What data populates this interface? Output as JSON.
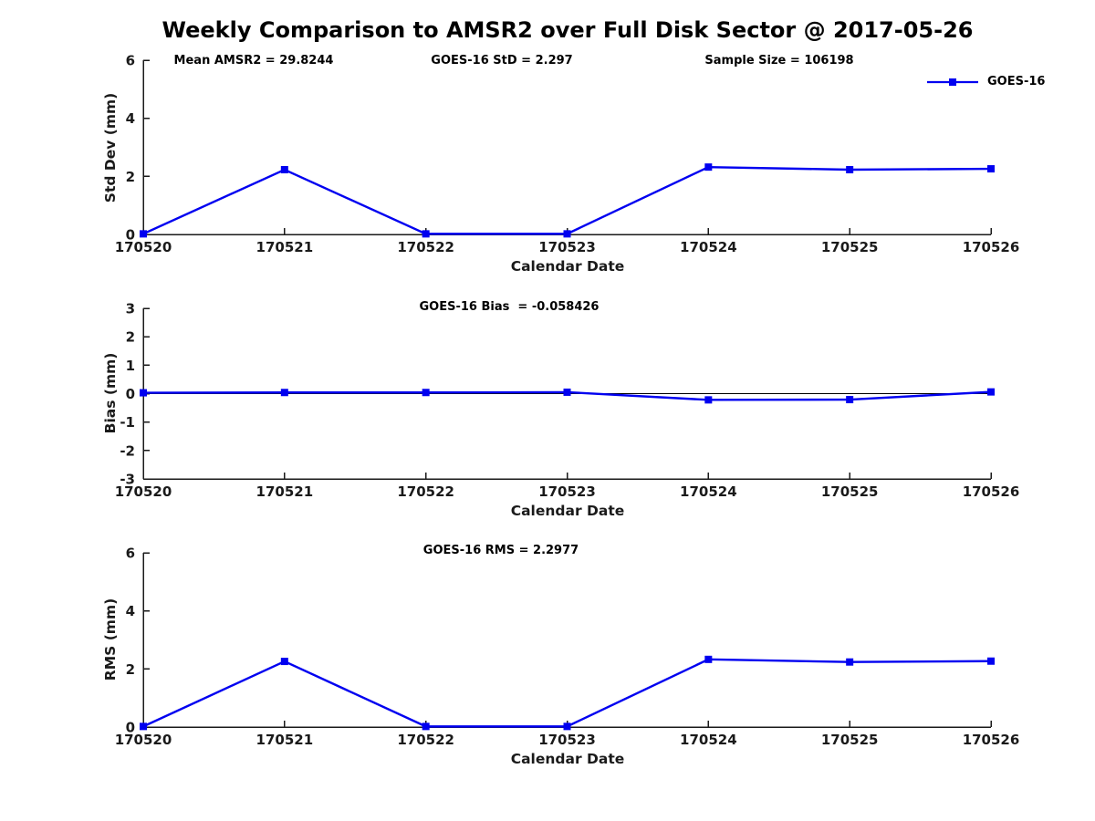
{
  "page": {
    "title": "Weekly Comparison to AMSR2 over Full Disk Sector @ 2017-05-26"
  },
  "annotations": {
    "mean_amsr2": "Mean AMSR2 = 29.8244",
    "goes16_std": "GOES-16 StD = 2.297",
    "sample_size": "Sample Size = 106198"
  },
  "legend": {
    "label": "GOES-16",
    "color": "#0000f0",
    "position": "top-right",
    "marker": "square"
  },
  "colors": {
    "line": "#0000f0",
    "axis": "#1a1a1a",
    "tick_text": "#1a1a1a",
    "zero_line": "#000000",
    "background": "#ffffff"
  },
  "chart_data": [
    {
      "type": "line",
      "title": "",
      "xlabel": "Calendar Date",
      "ylabel": "Std Dev (mm)",
      "categories": [
        "170520",
        "170521",
        "170522",
        "170523",
        "170524",
        "170525",
        "170526"
      ],
      "series": [
        {
          "name": "GOES-16",
          "values": [
            0.02,
            2.23,
            0.02,
            0.02,
            2.32,
            2.23,
            2.26
          ]
        }
      ],
      "ylim": [
        0,
        6
      ],
      "yticks": [
        0,
        2,
        4,
        6
      ],
      "grid": false,
      "zero_line": false,
      "marker": "square"
    },
    {
      "type": "line",
      "title": "GOES-16 Bias  = -0.058426",
      "xlabel": "Calendar Date",
      "ylabel": "Bias (mm)",
      "categories": [
        "170520",
        "170521",
        "170522",
        "170523",
        "170524",
        "170525",
        "170526"
      ],
      "series": [
        {
          "name": "GOES-16",
          "values": [
            0.03,
            0.04,
            0.04,
            0.05,
            -0.22,
            -0.21,
            0.06
          ]
        }
      ],
      "ylim": [
        -3,
        3
      ],
      "yticks": [
        -3,
        -2,
        -1,
        0,
        1,
        2,
        3
      ],
      "grid": false,
      "zero_line": true,
      "marker": "square"
    },
    {
      "type": "line",
      "title": "GOES-16 RMS = 2.2977",
      "xlabel": "Calendar Date",
      "ylabel": "RMS (mm)",
      "categories": [
        "170520",
        "170521",
        "170522",
        "170523",
        "170524",
        "170525",
        "170526"
      ],
      "series": [
        {
          "name": "GOES-16",
          "values": [
            0.02,
            2.26,
            0.02,
            0.02,
            2.33,
            2.24,
            2.27
          ]
        }
      ],
      "ylim": [
        0,
        6
      ],
      "yticks": [
        0,
        2,
        4,
        6
      ],
      "grid": false,
      "zero_line": false,
      "marker": "square"
    }
  ]
}
